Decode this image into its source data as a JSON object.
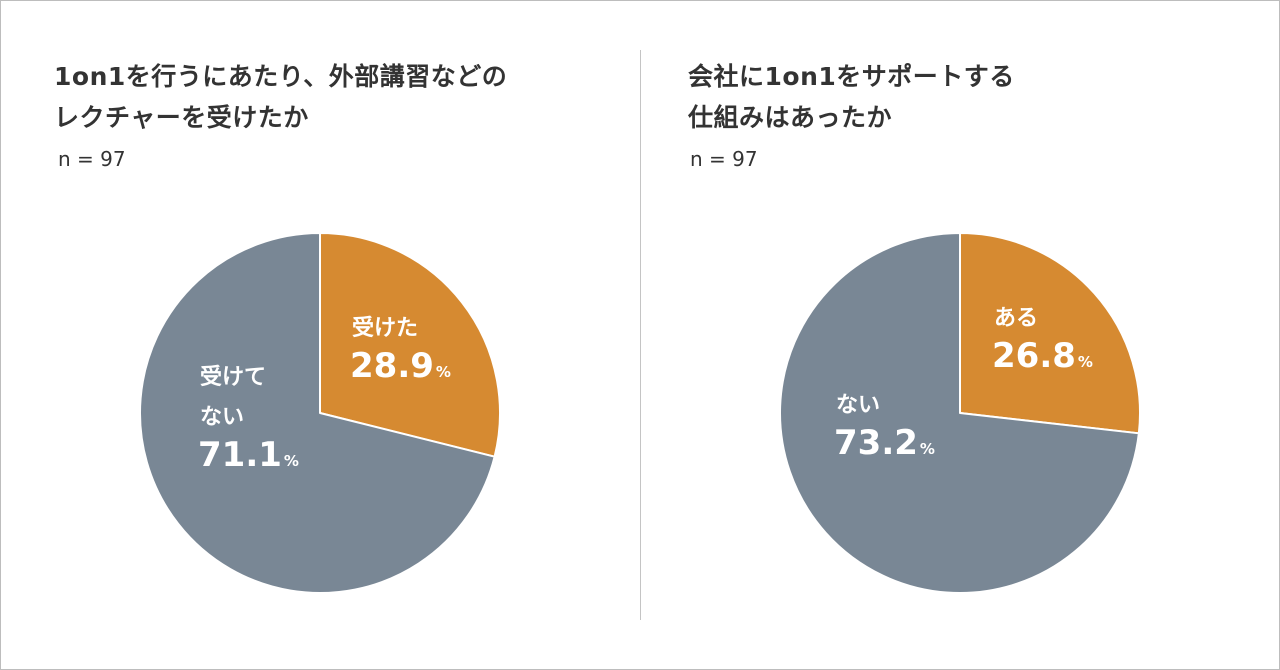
{
  "colors": {
    "orange": "#D68A31",
    "gray": "#798795"
  },
  "chart_data": [
    {
      "type": "pie",
      "title_lines": [
        "1on1を行うにあたり、外部講習などの",
        "レクチャーを受けたか"
      ],
      "n_label": "n = 97",
      "slices": [
        {
          "label_lines": [
            "受けた"
          ],
          "value": 28.9,
          "value_text": "28.9",
          "unit": "%",
          "color": "#D68A31"
        },
        {
          "label_lines": [
            "受けて",
            "ない"
          ],
          "value": 71.1,
          "value_text": "71.1",
          "unit": "%",
          "color": "#798795"
        }
      ]
    },
    {
      "type": "pie",
      "title_lines": [
        "会社に1on1をサポートする",
        "仕組みはあったか"
      ],
      "n_label": "n = 97",
      "slices": [
        {
          "label_lines": [
            "ある"
          ],
          "value": 26.8,
          "value_text": "26.8",
          "unit": "%",
          "color": "#D68A31"
        },
        {
          "label_lines": [
            "ない"
          ],
          "value": 73.2,
          "value_text": "73.2",
          "unit": "%",
          "color": "#798795"
        }
      ]
    }
  ]
}
